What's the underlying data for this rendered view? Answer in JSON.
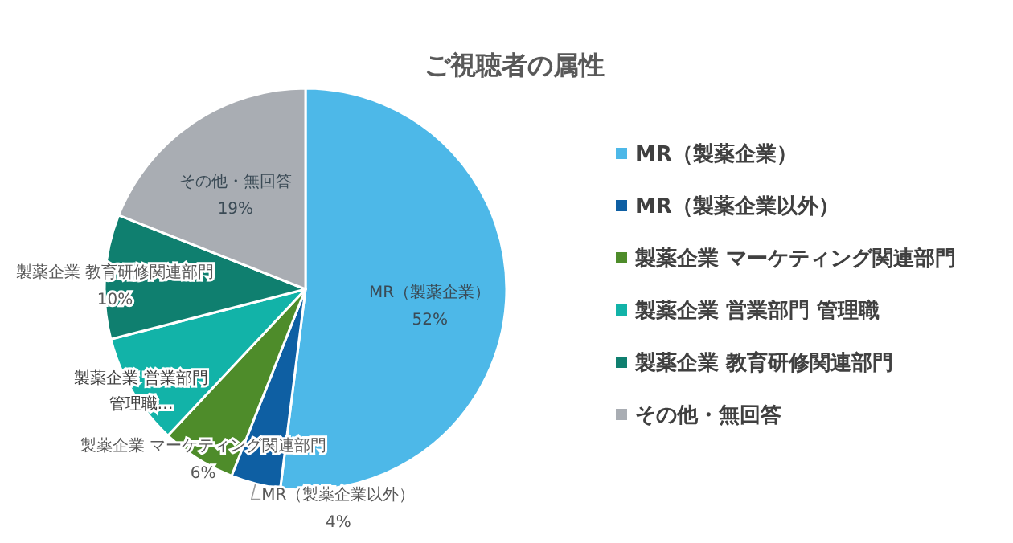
{
  "chart_data": {
    "type": "pie",
    "title": "ご視聴者の属性",
    "categories": [
      "MR（製薬企業）",
      "MR（製薬企業以外）",
      "製薬企業 マーケティング関連部門",
      "製薬企業 営業部門 管理職",
      "製薬企業 教育研修関連部門",
      "その他・無回答"
    ],
    "values": [
      52,
      4,
      6,
      9,
      10,
      19
    ],
    "value_labels": [
      "52%",
      "4%",
      "6%",
      null,
      "10%",
      "19%"
    ],
    "colors": [
      "#4db8e8",
      "#0e5fa3",
      "#4e8c2a",
      "#12b3a8",
      "#0f7f6f",
      "#a9adb3"
    ],
    "annotations": [
      "製薬企業 営業部門",
      "管理職…"
    ],
    "legend": "right"
  }
}
